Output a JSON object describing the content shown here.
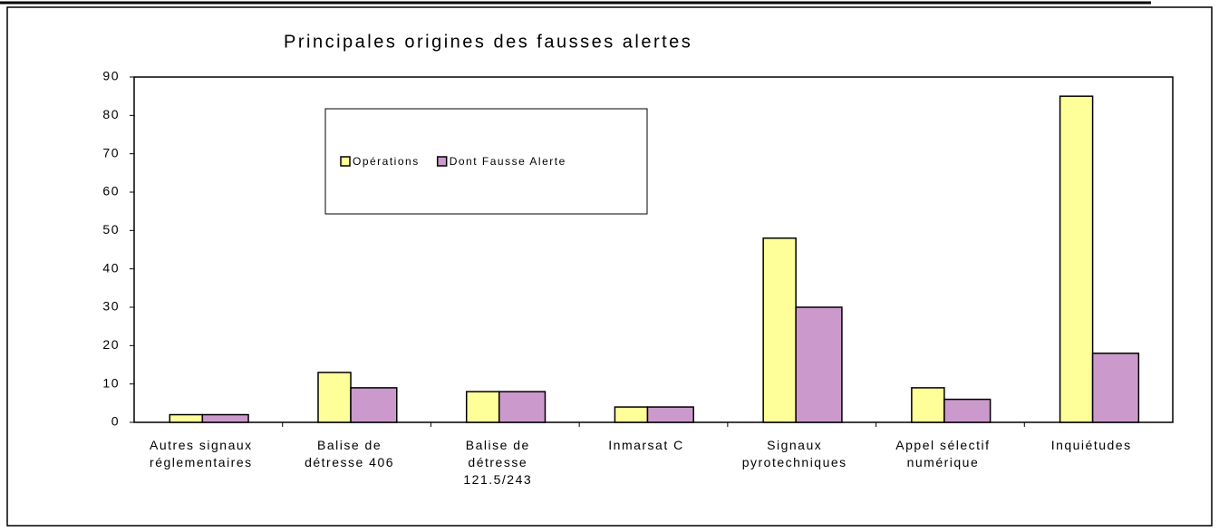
{
  "chart_data": {
    "type": "bar",
    "title": "Principales origines des fausses alertes",
    "categories": [
      "Autres signaux réglementaires",
      "Balise de détresse 406",
      "Balise de détresse 121.5/243",
      "Inmarsat C",
      "Signaux pyrotechniques",
      "Appel sélectif numérique",
      "Inquiétudes"
    ],
    "series": [
      {
        "name": "Opérations",
        "color": "#ffff99",
        "values": [
          2,
          13,
          8,
          4,
          48,
          9,
          85
        ]
      },
      {
        "name": "Dont Fausse Alerte",
        "color": "#cc99cc",
        "values": [
          2,
          9,
          8,
          4,
          30,
          6,
          18
        ]
      }
    ],
    "ylim": [
      0,
      90
    ],
    "yticks": [
      0,
      10,
      20,
      30,
      40,
      50,
      60,
      70,
      80,
      90
    ],
    "grid": false,
    "legend": "inside-top-left"
  }
}
